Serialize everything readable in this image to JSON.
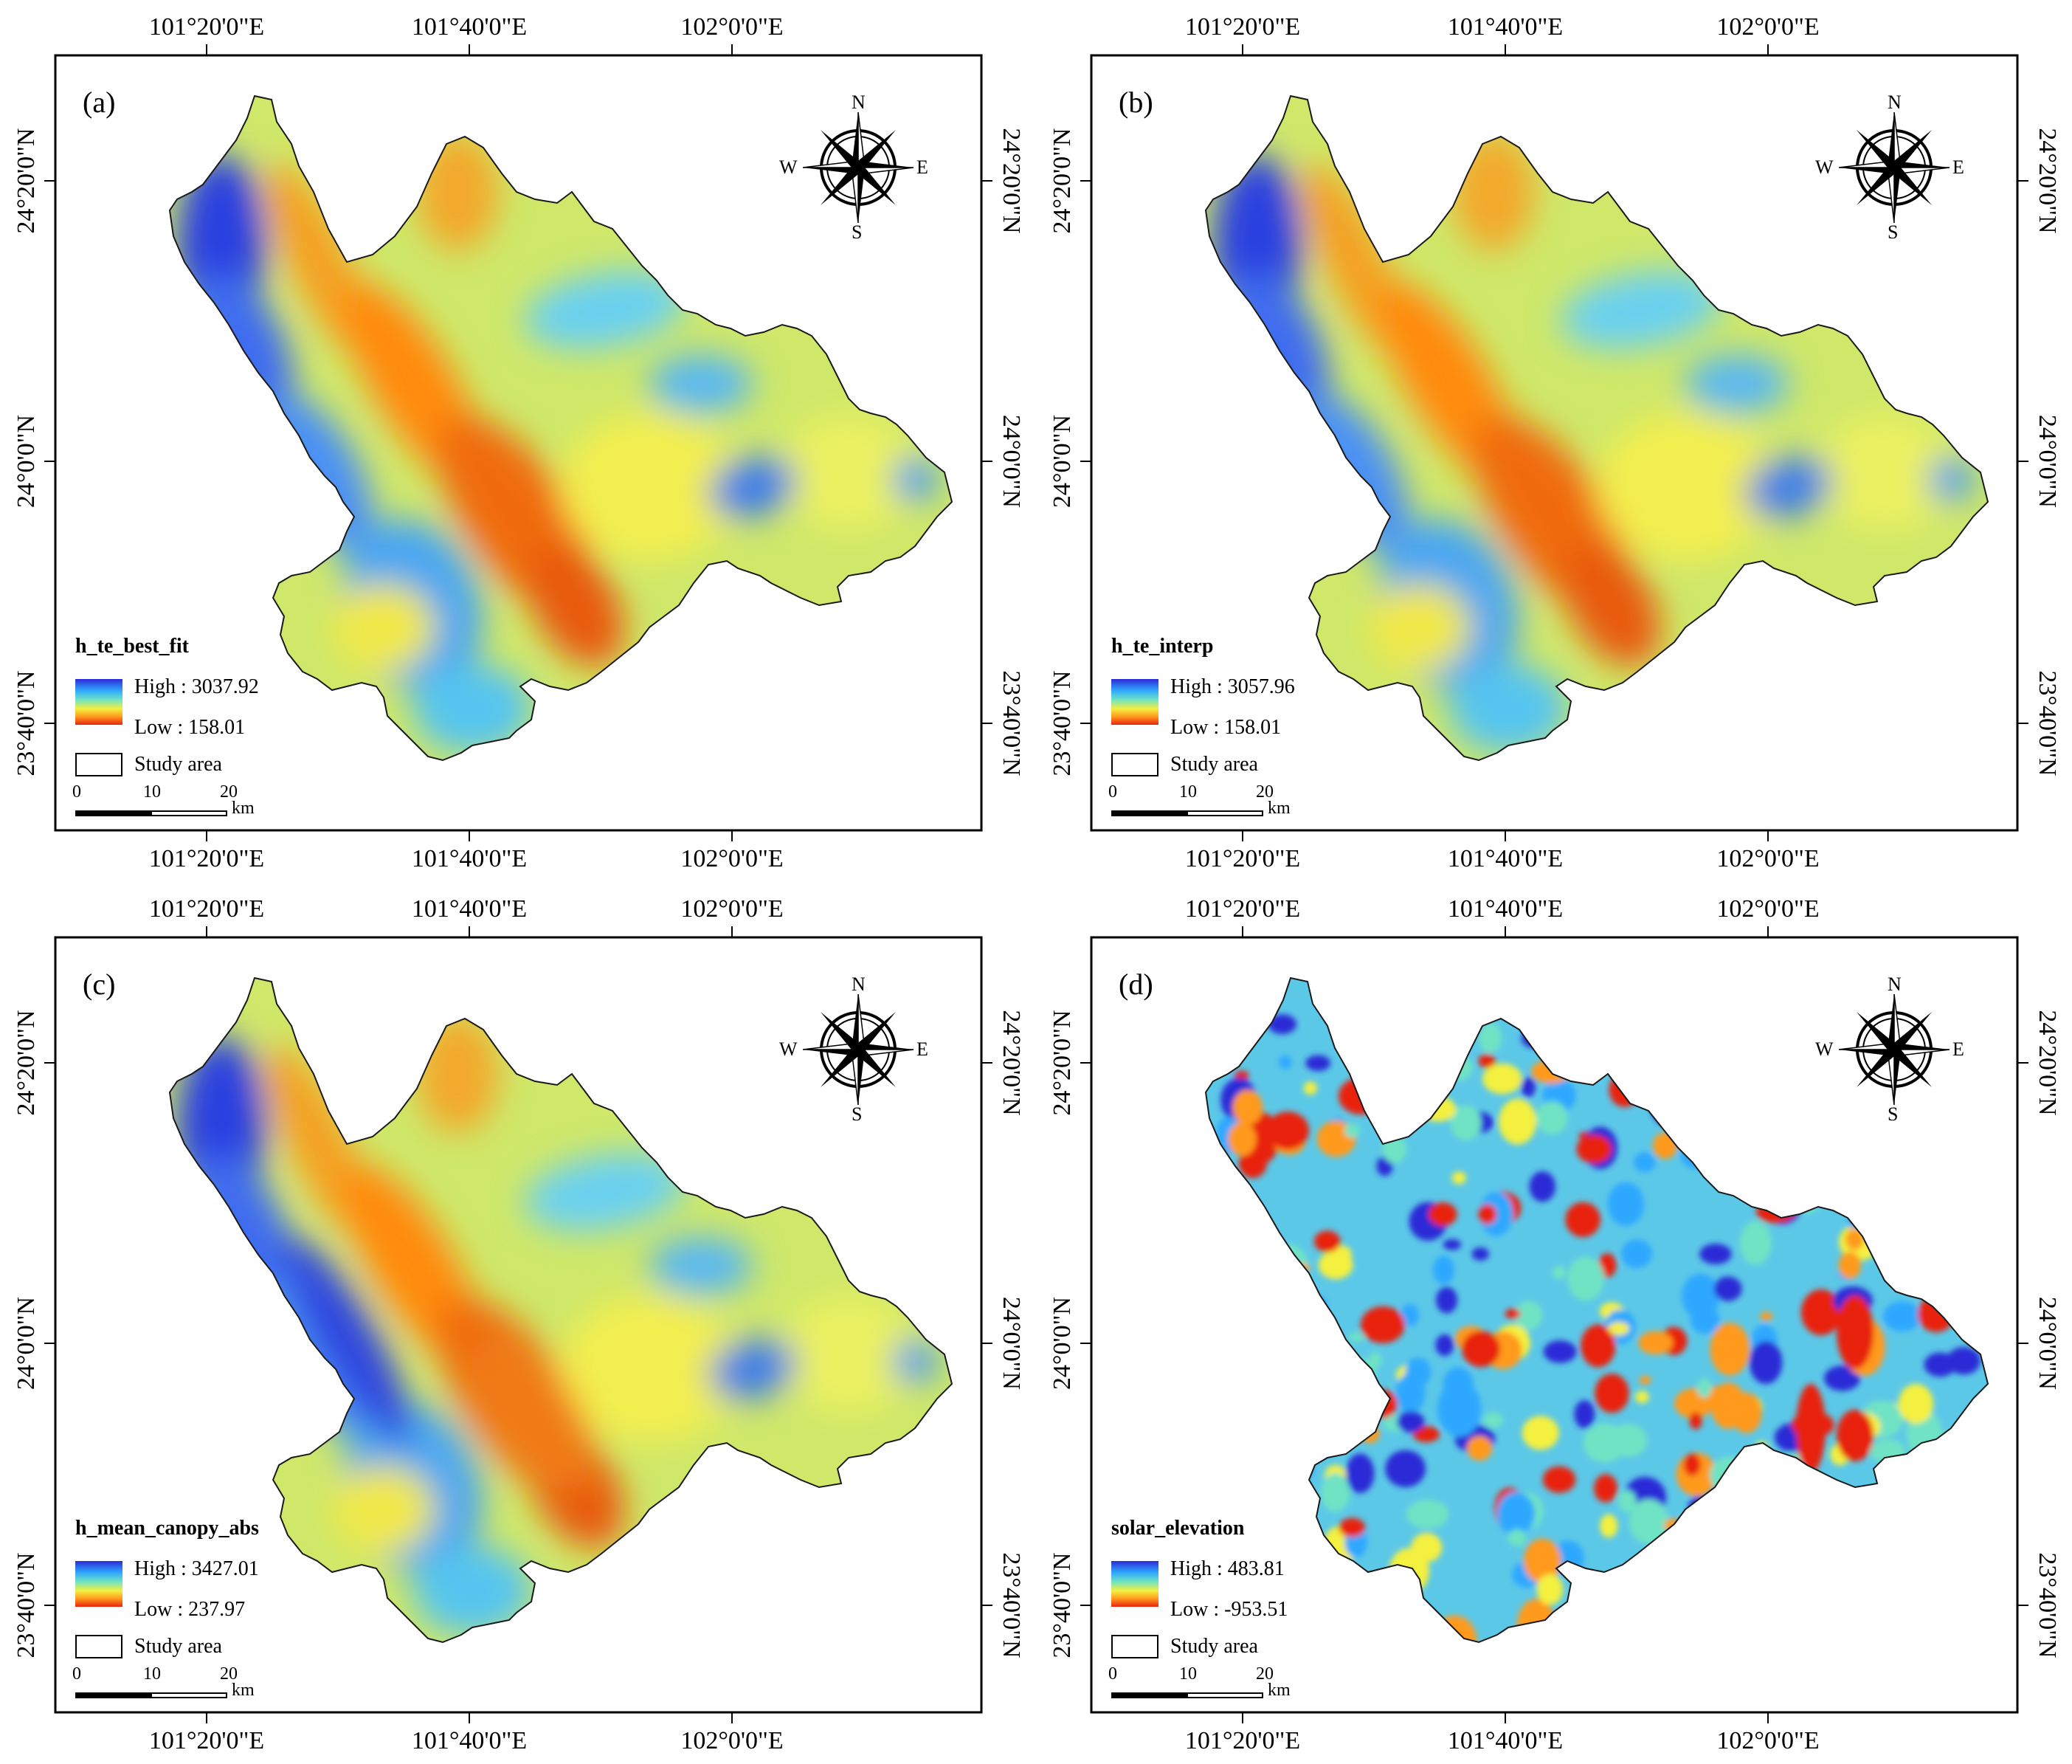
{
  "panels": [
    {
      "id": "a",
      "label": "(a)",
      "layer": "h_te_best_fit",
      "high": "High : 3037.92",
      "low": "Low : 158.01",
      "style": "terrain"
    },
    {
      "id": "b",
      "label": "(b)",
      "layer": "h_te_interp",
      "high": "High : 3057.96",
      "low": "Low : 158.01",
      "style": "terrain"
    },
    {
      "id": "c",
      "label": "(c)",
      "layer": "h_mean_canopy_abs",
      "high": "High : 3427.01",
      "low": "Low : 237.97",
      "style": "terrain"
    },
    {
      "id": "d",
      "label": "(d)",
      "layer": "solar_elevation",
      "high": "High : 483.81",
      "low": "Low : -953.51",
      "style": "noise"
    }
  ],
  "lon_labels": [
    "101°20'0\"E",
    "101°40'0\"E",
    "102°0'0\"E"
  ],
  "lat_labels": [
    "24°20'0\"N",
    "24°0'0\"N",
    "23°40'0\"N"
  ],
  "study_area": "Study area",
  "scale": {
    "ticks": [
      "0",
      "10",
      "20"
    ],
    "unit": "km"
  },
  "compass": {
    "n": "N",
    "s": "S",
    "e": "E",
    "w": "W"
  },
  "colors": {
    "high": "#2b2bd6",
    "mid": "#f4f040",
    "low": "#e82410"
  }
}
